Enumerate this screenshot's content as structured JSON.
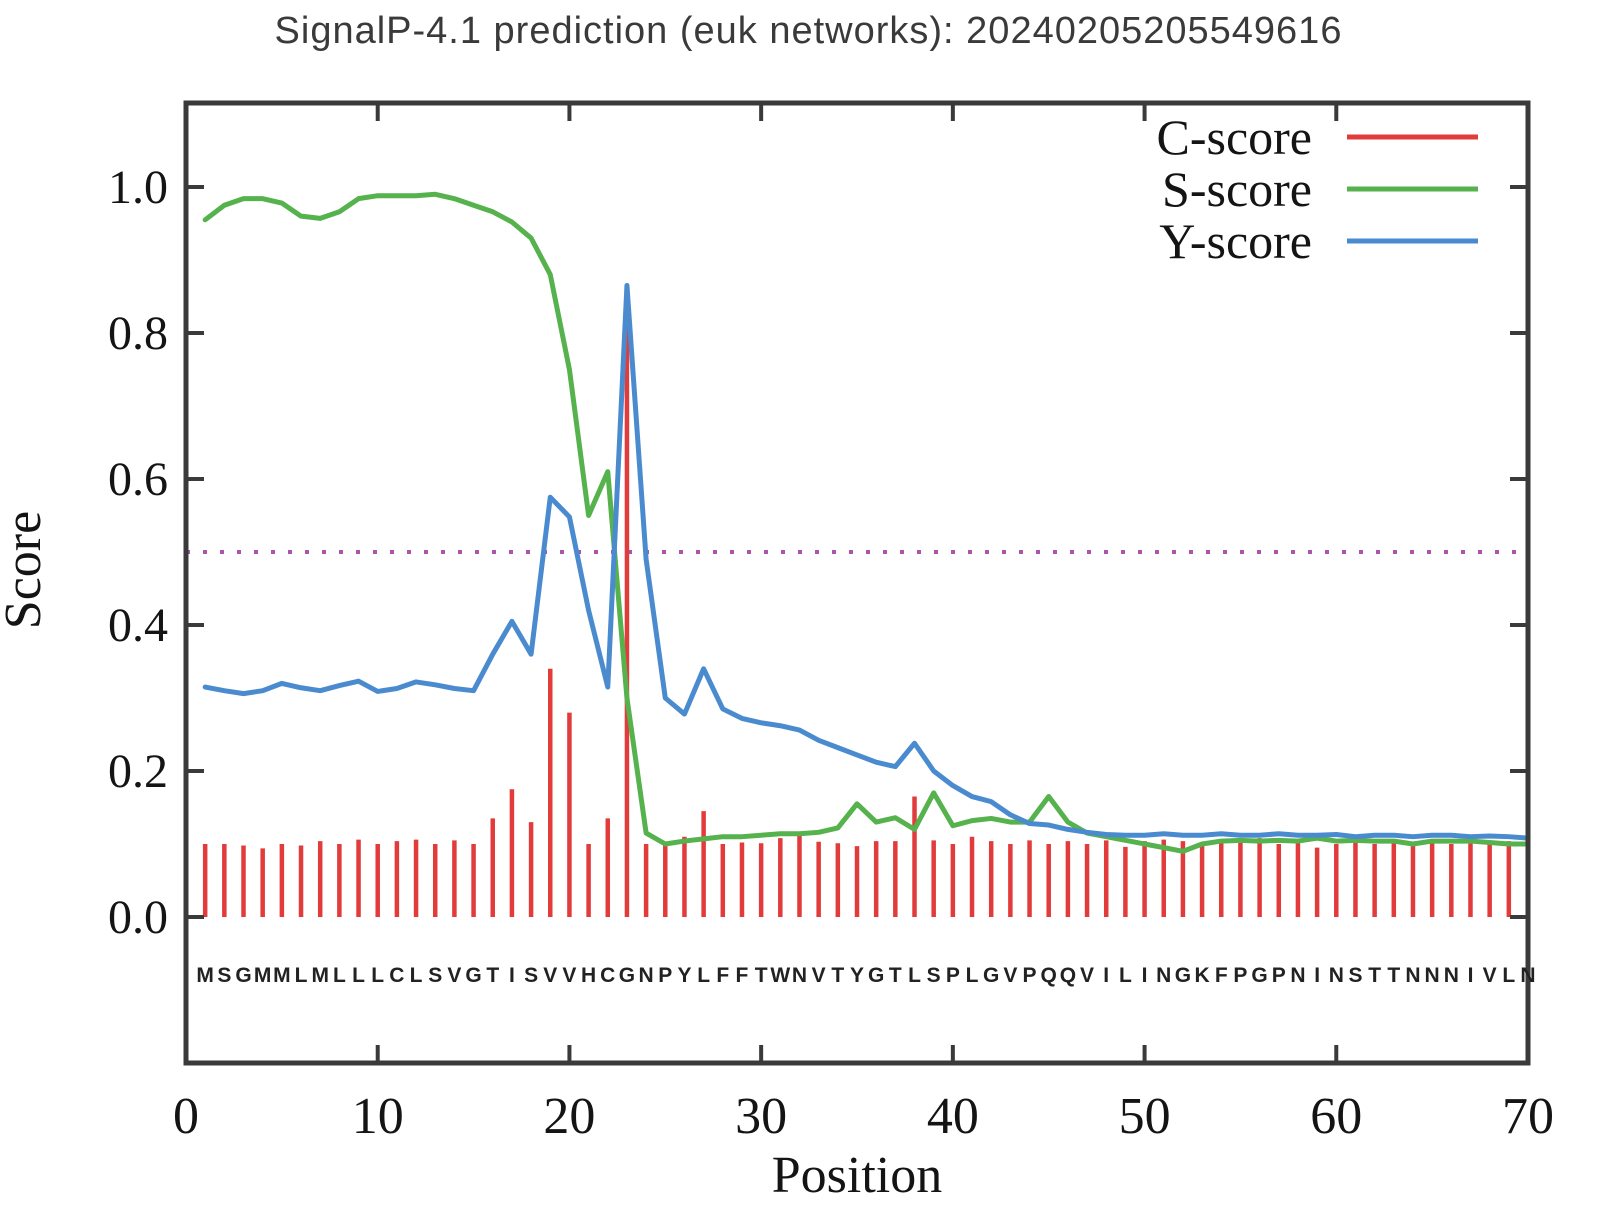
{
  "chart_data": {
    "type": "line",
    "title": "SignalP-4.1 prediction (euk networks): 20240205205549616",
    "xlabel": "Position",
    "ylabel": "Score",
    "xlim": [
      0,
      70
    ],
    "ylim": [
      -0.2,
      1.115
    ],
    "xticks": [
      0,
      10,
      20,
      30,
      40,
      50,
      60,
      70
    ],
    "yticks": [
      "0.0",
      "0.2",
      "0.4",
      "0.6",
      "0.8",
      "1.0"
    ],
    "x_range": [
      1,
      70
    ],
    "grid": false,
    "legend_position": "top-right",
    "threshold": {
      "value": 0.5,
      "color": "#aa55aa",
      "style": "dotted"
    },
    "sequence": [
      "M",
      "S",
      "G",
      "M",
      "M",
      "L",
      "M",
      "L",
      "L",
      "L",
      "C",
      "L",
      "S",
      "V",
      "G",
      "T",
      "I",
      "S",
      "V",
      "V",
      "H",
      "C",
      "G",
      "N",
      "P",
      "Y",
      "L",
      "F",
      "F",
      "T",
      "W",
      "N",
      "V",
      "T",
      "Y",
      "G",
      "T",
      "L",
      "S",
      "P",
      "L",
      "G",
      "V",
      "P",
      "Q",
      "Q",
      "V",
      "I",
      "L",
      "I",
      "N",
      "G",
      "K",
      "F",
      "P",
      "G",
      "P",
      "N",
      "I",
      "N",
      "S",
      "T",
      "T",
      "N",
      "N",
      "N",
      "I",
      "V",
      "L",
      "N"
    ],
    "series": [
      {
        "name": "C-score",
        "type": "impulse",
        "color": "#e23b3c",
        "values": [
          0.1,
          0.1,
          0.098,
          0.094,
          0.1,
          0.098,
          0.104,
          0.1,
          0.106,
          0.1,
          0.104,
          0.106,
          0.1,
          0.105,
          0.1,
          0.135,
          0.175,
          0.13,
          0.34,
          0.28,
          0.1,
          0.135,
          0.825,
          0.1,
          0.103,
          0.11,
          0.145,
          0.1,
          0.102,
          0.101,
          0.108,
          0.114,
          0.103,
          0.101,
          0.097,
          0.104,
          0.104,
          0.165,
          0.105,
          0.1,
          0.11,
          0.104,
          0.1,
          0.105,
          0.1,
          0.104,
          0.1,
          0.105,
          0.096,
          0.104,
          0.106,
          0.104,
          0.1,
          0.104,
          0.103,
          0.108,
          0.1,
          0.104,
          0.095,
          0.1,
          0.104,
          0.1,
          0.105,
          0.1,
          0.104,
          0.1,
          0.104,
          0.1,
          0.104,
          0.1
        ]
      },
      {
        "name": "S-score",
        "type": "line",
        "color": "#55b24d",
        "values": [
          0.955,
          0.975,
          0.984,
          0.984,
          0.978,
          0.96,
          0.957,
          0.966,
          0.984,
          0.988,
          0.988,
          0.988,
          0.99,
          0.984,
          0.975,
          0.966,
          0.952,
          0.93,
          0.88,
          0.75,
          0.55,
          0.61,
          0.3,
          0.115,
          0.1,
          0.104,
          0.107,
          0.11,
          0.11,
          0.112,
          0.114,
          0.114,
          0.116,
          0.122,
          0.155,
          0.13,
          0.136,
          0.12,
          0.17,
          0.125,
          0.132,
          0.135,
          0.13,
          0.13,
          0.165,
          0.13,
          0.115,
          0.11,
          0.105,
          0.1,
          0.095,
          0.09,
          0.1,
          0.104,
          0.105,
          0.104,
          0.105,
          0.104,
          0.108,
          0.104,
          0.105,
          0.104,
          0.104,
          0.1,
          0.104,
          0.104,
          0.104,
          0.102,
          0.1,
          0.1
        ]
      },
      {
        "name": "Y-score",
        "type": "line",
        "color": "#4a8bd0",
        "values": [
          0.315,
          0.31,
          0.306,
          0.31,
          0.32,
          0.314,
          0.31,
          0.317,
          0.323,
          0.309,
          0.313,
          0.322,
          0.318,
          0.313,
          0.31,
          0.36,
          0.405,
          0.36,
          0.575,
          0.548,
          0.42,
          0.315,
          0.865,
          0.49,
          0.3,
          0.278,
          0.34,
          0.285,
          0.272,
          0.266,
          0.262,
          0.256,
          0.242,
          0.232,
          0.222,
          0.212,
          0.206,
          0.238,
          0.2,
          0.18,
          0.165,
          0.158,
          0.14,
          0.128,
          0.126,
          0.12,
          0.116,
          0.113,
          0.112,
          0.112,
          0.114,
          0.112,
          0.112,
          0.114,
          0.112,
          0.112,
          0.114,
          0.112,
          0.112,
          0.113,
          0.11,
          0.112,
          0.112,
          0.11,
          0.112,
          0.112,
          0.11,
          0.111,
          0.11,
          0.108
        ]
      }
    ],
    "colors": {
      "axis": "#3a3a3a",
      "text": "#141414",
      "sequence_text": "#222222"
    }
  }
}
